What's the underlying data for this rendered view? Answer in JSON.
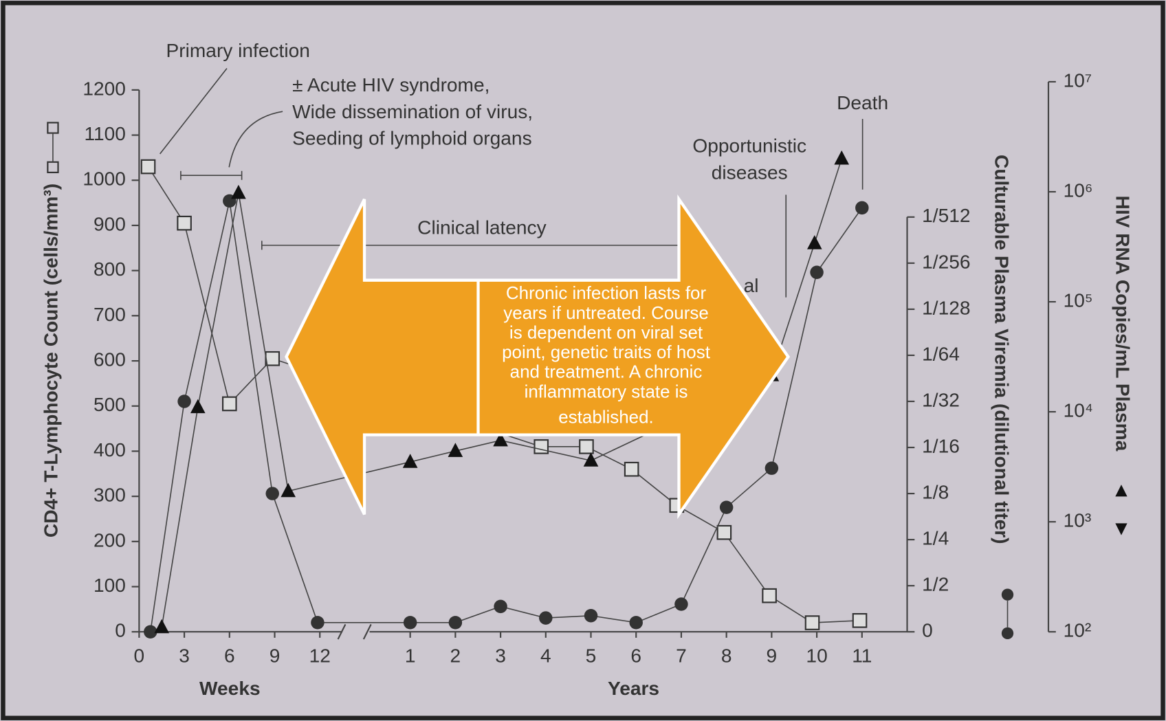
{
  "chart_data": {
    "type": "line",
    "xlabel_left": "Weeks",
    "xlabel_right": "Years",
    "ylabel": "CD4+ T-Lymphocyte Count (cells/mm³)",
    "y2label": "Culturable Plasma Viremia (dilutional titer)",
    "y3label": "HIV RNA Copies/mL Plasma",
    "xlim": [
      0,
      17
    ],
    "xticks": [
      {
        "value": 0,
        "label": "0"
      },
      {
        "value": 1,
        "label": "3"
      },
      {
        "value": 2,
        "label": "6"
      },
      {
        "value": 3,
        "label": "9"
      },
      {
        "value": 4,
        "label": "12"
      },
      {
        "value": 6,
        "label": "1"
      },
      {
        "value": 7,
        "label": "2"
      },
      {
        "value": 8,
        "label": "3"
      },
      {
        "value": 9,
        "label": "4"
      },
      {
        "value": 10,
        "label": "5"
      },
      {
        "value": 11,
        "label": "6"
      },
      {
        "value": 12,
        "label": "7"
      },
      {
        "value": 13,
        "label": "8"
      },
      {
        "value": 14,
        "label": "9"
      },
      {
        "value": 15,
        "label": "10"
      },
      {
        "value": 16,
        "label": "11"
      }
    ],
    "ylim": [
      0,
      1200
    ],
    "yticks": [
      0,
      100,
      200,
      300,
      400,
      500,
      600,
      700,
      800,
      900,
      1000,
      1100,
      1200
    ],
    "y2lim": [
      0,
      9
    ],
    "y2ticks": [
      {
        "value": 0,
        "label": "0"
      },
      {
        "value": 1,
        "label": "1/2"
      },
      {
        "value": 2,
        "label": "1/4"
      },
      {
        "value": 3,
        "label": "1/8"
      },
      {
        "value": 4,
        "label": "1/16"
      },
      {
        "value": 5,
        "label": "1/32"
      },
      {
        "value": 6,
        "label": "1/64"
      },
      {
        "value": 7,
        "label": "1/128"
      },
      {
        "value": 8,
        "label": "1/256"
      },
      {
        "value": 9,
        "label": "1/512"
      }
    ],
    "y3lim": [
      100,
      10000000
    ],
    "y3log": true,
    "y3ticks": [
      {
        "value": 100,
        "label": "10²"
      },
      {
        "value": 1000,
        "label": "10³"
      },
      {
        "value": 10000,
        "label": "10⁴"
      },
      {
        "value": 100000,
        "label": "10⁵"
      },
      {
        "value": 1000000,
        "label": "10⁶"
      },
      {
        "value": 10000000,
        "label": "10⁷"
      }
    ],
    "series": [
      {
        "marker": "square",
        "color": "#333333",
        "axis": "y",
        "x": [
          0.2,
          1.0,
          2.0,
          2.95,
          8.9,
          9.9,
          10.9,
          11.9,
          12.95,
          13.95,
          14.9,
          15.95
        ],
        "values": [
          1030,
          905,
          505,
          605,
          410,
          410,
          360,
          280,
          220,
          80,
          20,
          25
        ]
      },
      {
        "marker": "circle",
        "color": "#333333",
        "axis": "y2",
        "x": [
          0.25,
          1.0,
          2.0,
          2.95,
          3.95,
          6,
          7,
          8,
          9,
          10,
          11,
          12,
          13,
          14,
          15,
          16
        ],
        "values": [
          0,
          5.0,
          9.35,
          3.0,
          0.2,
          0.2,
          0.2,
          0.55,
          0.3,
          0.35,
          0.2,
          0.6,
          2.7,
          3.55,
          7.8,
          9.2
        ]
      },
      {
        "marker": "triangle",
        "color": "#111111",
        "axis": "y3",
        "x": [
          0.5,
          1.3,
          2.2,
          3.3,
          6,
          7,
          8,
          10,
          14,
          14.95,
          15.55
        ],
        "values": [
          110,
          11000,
          975000,
          1900,
          3500,
          4400,
          5500,
          3600,
          21500,
          340000,
          2000000
        ]
      }
    ],
    "annotations": [
      "Primary infection",
      "± Acute HIV syndrome,",
      "Wide dissemination of virus,",
      "Seeding of lymphoid organs",
      "Clinical latency",
      "Death",
      "Opportunistic",
      "diseases",
      "al"
    ],
    "callout": [
      "Chronic infection lasts for",
      "years if untreated. Course",
      "is dependent on viral set",
      "point, genetic traits of host",
      "and treatment.  A chronic",
      "inflammatory state is",
      "established."
    ],
    "callout_color": "#f0a020"
  }
}
